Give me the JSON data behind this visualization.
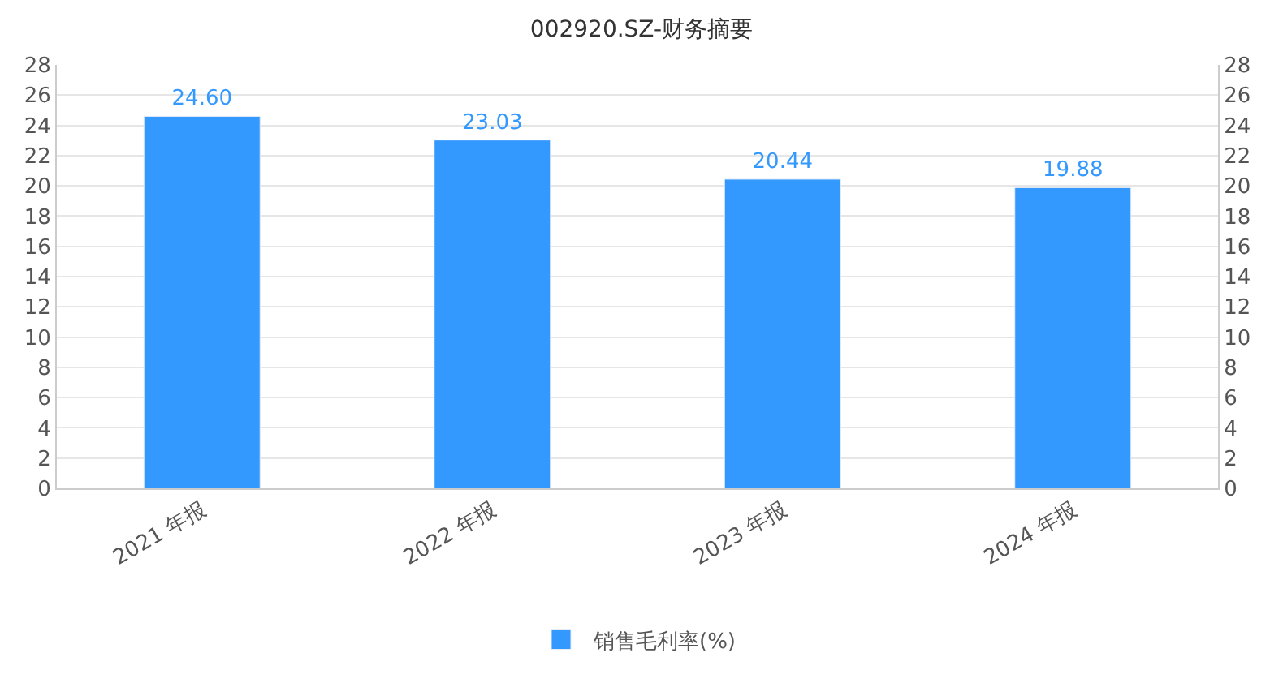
{
  "chart_data": {
    "type": "bar",
    "title": "002920.SZ-财务摘要",
    "categories": [
      "2021 年报",
      "2022 年报",
      "2023 年报",
      "2024 年报"
    ],
    "series": [
      {
        "name": "销售毛利率(%)",
        "color": "#3399ff",
        "values": [
          24.6,
          23.03,
          20.44,
          19.88
        ],
        "value_labels": [
          "24.60",
          "23.03",
          "20.44",
          "19.88"
        ]
      }
    ],
    "ylim": [
      0,
      28
    ],
    "yticks": [
      0,
      2,
      4,
      6,
      8,
      10,
      12,
      14,
      16,
      18,
      20,
      22,
      24,
      26,
      28
    ],
    "y2lim": [
      0,
      28
    ],
    "y2ticks": [
      0,
      2,
      4,
      6,
      8,
      10,
      12,
      14,
      16,
      18,
      20,
      22,
      24,
      26,
      28
    ],
    "grid": "y",
    "legend": "bottom"
  }
}
